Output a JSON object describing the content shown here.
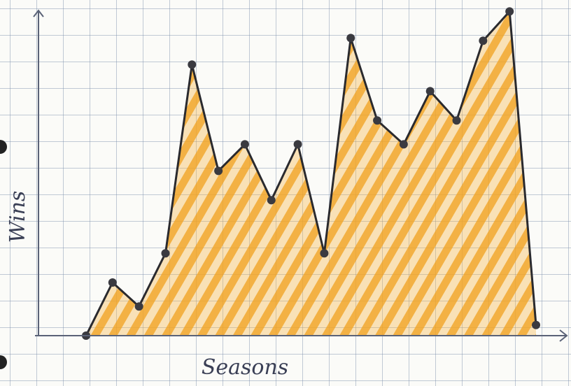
{
  "chart_data": {
    "type": "area",
    "x_label": "Seasons",
    "y_label": "Wins",
    "categories": [
      null,
      null,
      null,
      null,
      null,
      null,
      null,
      null,
      null,
      null,
      null,
      null,
      null,
      null,
      null,
      null,
      null,
      null
    ],
    "values": [
      0,
      2.0,
      1.1,
      3.1,
      10.2,
      6.2,
      7.2,
      5.1,
      7.2,
      3.1,
      11.2,
      8.1,
      7.2,
      9.2,
      8.1,
      11.1,
      12.2,
      0.4
    ],
    "color": "#f0a020",
    "ylim": [
      0,
      12.5
    ]
  }
}
